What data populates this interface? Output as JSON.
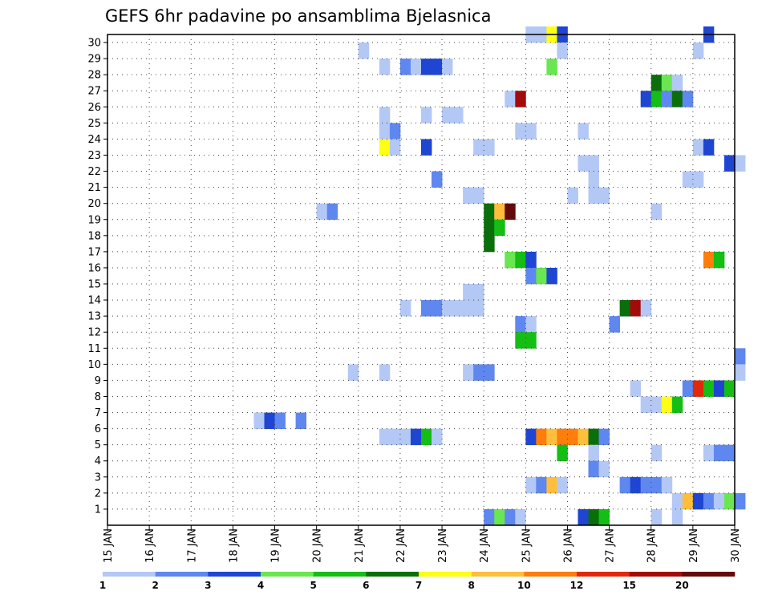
{
  "chart_data": {
    "type": "heatmap",
    "title": "GEFS 6hr padavine po ansamblima Bjelasnica",
    "xlabel": "",
    "ylabel": "",
    "x_tick_labels": [
      "15 JAN",
      "16 JAN",
      "17 JAN",
      "18 JAN",
      "19 JAN",
      "20 JAN",
      "21 JAN",
      "22 JAN",
      "23 JAN",
      "24 JAN",
      "25 JAN",
      "26 JAN",
      "27 JAN",
      "28 JAN",
      "29 JAN",
      "30 JAN"
    ],
    "x_steps_per_day": 4,
    "y_tick_labels": [
      "1",
      "2",
      "3",
      "4",
      "5",
      "6",
      "7",
      "8",
      "9",
      "10",
      "11",
      "12",
      "13",
      "14",
      "15",
      "16",
      "17",
      "18",
      "19",
      "20",
      "21",
      "22",
      "23",
      "24",
      "25",
      "26",
      "27",
      "28",
      "29",
      "30"
    ],
    "grid": true,
    "legend": {
      "placement": "bottom",
      "colors": [
        "#b4c8f5",
        "#5f87f0",
        "#1e46d2",
        "#69e650",
        "#14be14",
        "#0a6e0a",
        "#ffff14",
        "#ffbe3c",
        "#ff7d0a",
        "#e1280a",
        "#a50a0a",
        "#640a0a"
      ],
      "labels": [
        "1",
        "2",
        "3",
        "4",
        "5",
        "6",
        "7",
        "8",
        "10",
        "12",
        "15",
        "20"
      ]
    },
    "cells": [
      {
        "member": 30,
        "step": 40,
        "color": 0
      },
      {
        "member": 30,
        "step": 41,
        "color": 0
      },
      {
        "member": 30,
        "step": 42,
        "color": 6
      },
      {
        "member": 30,
        "step": 43,
        "color": 2
      },
      {
        "member": 30,
        "step": 57,
        "color": 2
      },
      {
        "member": 29,
        "step": 24,
        "color": 0
      },
      {
        "member": 29,
        "step": 43,
        "color": 0
      },
      {
        "member": 29,
        "step": 56,
        "color": 0
      },
      {
        "member": 28,
        "step": 26,
        "color": 0
      },
      {
        "member": 28,
        "step": 28,
        "color": 1
      },
      {
        "member": 28,
        "step": 29,
        "color": 0
      },
      {
        "member": 28,
        "step": 30,
        "color": 2
      },
      {
        "member": 28,
        "step": 31,
        "color": 2
      },
      {
        "member": 28,
        "step": 32,
        "color": 0
      },
      {
        "member": 28,
        "step": 42,
        "color": 3
      },
      {
        "member": 27,
        "step": 52,
        "color": 5
      },
      {
        "member": 27,
        "step": 53,
        "color": 3
      },
      {
        "member": 27,
        "step": 54,
        "color": 0
      },
      {
        "member": 26,
        "step": 38,
        "color": 0
      },
      {
        "member": 26,
        "step": 39,
        "color": 10
      },
      {
        "member": 26,
        "step": 51,
        "color": 2
      },
      {
        "member": 26,
        "step": 52,
        "color": 4
      },
      {
        "member": 26,
        "step": 53,
        "color": 1
      },
      {
        "member": 26,
        "step": 54,
        "color": 5
      },
      {
        "member": 26,
        "step": 55,
        "color": 1
      },
      {
        "member": 25,
        "step": 26,
        "color": 0
      },
      {
        "member": 25,
        "step": 30,
        "color": 0
      },
      {
        "member": 25,
        "step": 32,
        "color": 0
      },
      {
        "member": 25,
        "step": 33,
        "color": 0
      },
      {
        "member": 24,
        "step": 26,
        "color": 0
      },
      {
        "member": 24,
        "step": 27,
        "color": 1
      },
      {
        "member": 24,
        "step": 39,
        "color": 0
      },
      {
        "member": 24,
        "step": 40,
        "color": 0
      },
      {
        "member": 24,
        "step": 45,
        "color": 0
      },
      {
        "member": 23,
        "step": 26,
        "color": 6
      },
      {
        "member": 23,
        "step": 27,
        "color": 0
      },
      {
        "member": 23,
        "step": 30,
        "color": 2
      },
      {
        "member": 23,
        "step": 35,
        "color": 0
      },
      {
        "member": 23,
        "step": 36,
        "color": 0
      },
      {
        "member": 23,
        "step": 56,
        "color": 0
      },
      {
        "member": 23,
        "step": 57,
        "color": 2
      },
      {
        "member": 22,
        "step": 45,
        "color": 0
      },
      {
        "member": 22,
        "step": 46,
        "color": 0
      },
      {
        "member": 22,
        "step": 59,
        "color": 2
      },
      {
        "member": 22,
        "step": 60,
        "color": 0
      },
      {
        "member": 21,
        "step": 31,
        "color": 1
      },
      {
        "member": 21,
        "step": 46,
        "color": 0
      },
      {
        "member": 21,
        "step": 55,
        "color": 0
      },
      {
        "member": 21,
        "step": 56,
        "color": 0
      },
      {
        "member": 20,
        "step": 34,
        "color": 0
      },
      {
        "member": 20,
        "step": 35,
        "color": 0
      },
      {
        "member": 20,
        "step": 44,
        "color": 0
      },
      {
        "member": 20,
        "step": 46,
        "color": 0
      },
      {
        "member": 20,
        "step": 47,
        "color": 0
      },
      {
        "member": 19,
        "step": 20,
        "color": 0
      },
      {
        "member": 19,
        "step": 21,
        "color": 1
      },
      {
        "member": 19,
        "step": 36,
        "color": 5
      },
      {
        "member": 19,
        "step": 37,
        "color": 7
      },
      {
        "member": 19,
        "step": 38,
        "color": 11
      },
      {
        "member": 19,
        "step": 52,
        "color": 0
      },
      {
        "member": 18,
        "step": 36,
        "color": 5
      },
      {
        "member": 18,
        "step": 37,
        "color": 4
      },
      {
        "member": 17,
        "step": 36,
        "color": 5
      },
      {
        "member": 16,
        "step": 38,
        "color": 3
      },
      {
        "member": 16,
        "step": 39,
        "color": 4
      },
      {
        "member": 16,
        "step": 40,
        "color": 2
      },
      {
        "member": 16,
        "step": 57,
        "color": 8
      },
      {
        "member": 16,
        "step": 58,
        "color": 4
      },
      {
        "member": 15,
        "step": 40,
        "color": 1
      },
      {
        "member": 15,
        "step": 41,
        "color": 3
      },
      {
        "member": 15,
        "step": 42,
        "color": 2
      },
      {
        "member": 14,
        "step": 34,
        "color": 0
      },
      {
        "member": 14,
        "step": 35,
        "color": 0
      },
      {
        "member": 13,
        "step": 28,
        "color": 0
      },
      {
        "member": 13,
        "step": 30,
        "color": 1
      },
      {
        "member": 13,
        "step": 31,
        "color": 1
      },
      {
        "member": 13,
        "step": 32,
        "color": 0
      },
      {
        "member": 13,
        "step": 33,
        "color": 0
      },
      {
        "member": 13,
        "step": 34,
        "color": 0
      },
      {
        "member": 13,
        "step": 35,
        "color": 0
      },
      {
        "member": 13,
        "step": 49,
        "color": 5
      },
      {
        "member": 13,
        "step": 50,
        "color": 10
      },
      {
        "member": 13,
        "step": 51,
        "color": 0
      },
      {
        "member": 12,
        "step": 39,
        "color": 1
      },
      {
        "member": 12,
        "step": 40,
        "color": 0
      },
      {
        "member": 12,
        "step": 48,
        "color": 1
      },
      {
        "member": 11,
        "step": 39,
        "color": 4
      },
      {
        "member": 11,
        "step": 40,
        "color": 4
      },
      {
        "member": 10,
        "step": 60,
        "color": 1
      },
      {
        "member": 9,
        "step": 23,
        "color": 0
      },
      {
        "member": 9,
        "step": 26,
        "color": 0
      },
      {
        "member": 9,
        "step": 34,
        "color": 0
      },
      {
        "member": 9,
        "step": 35,
        "color": 1
      },
      {
        "member": 9,
        "step": 36,
        "color": 1
      },
      {
        "member": 9,
        "step": 60,
        "color": 0
      },
      {
        "member": 8,
        "step": 50,
        "color": 0
      },
      {
        "member": 8,
        "step": 55,
        "color": 1
      },
      {
        "member": 8,
        "step": 56,
        "color": 9
      },
      {
        "member": 8,
        "step": 57,
        "color": 4
      },
      {
        "member": 8,
        "step": 58,
        "color": 2
      },
      {
        "member": 8,
        "step": 59,
        "color": 4
      },
      {
        "member": 7,
        "step": 51,
        "color": 0
      },
      {
        "member": 7,
        "step": 52,
        "color": 0
      },
      {
        "member": 7,
        "step": 53,
        "color": 6
      },
      {
        "member": 7,
        "step": 54,
        "color": 4
      },
      {
        "member": 6,
        "step": 14,
        "color": 0
      },
      {
        "member": 6,
        "step": 15,
        "color": 2
      },
      {
        "member": 6,
        "step": 16,
        "color": 1
      },
      {
        "member": 6,
        "step": 18,
        "color": 1
      },
      {
        "member": 5,
        "step": 26,
        "color": 0
      },
      {
        "member": 5,
        "step": 27,
        "color": 0
      },
      {
        "member": 5,
        "step": 28,
        "color": 0
      },
      {
        "member": 5,
        "step": 29,
        "color": 2
      },
      {
        "member": 5,
        "step": 30,
        "color": 4
      },
      {
        "member": 5,
        "step": 31,
        "color": 0
      },
      {
        "member": 5,
        "step": 40,
        "color": 2
      },
      {
        "member": 5,
        "step": 41,
        "color": 8
      },
      {
        "member": 5,
        "step": 42,
        "color": 7
      },
      {
        "member": 5,
        "step": 43,
        "color": 8
      },
      {
        "member": 5,
        "step": 44,
        "color": 8
      },
      {
        "member": 5,
        "step": 45,
        "color": 7
      },
      {
        "member": 5,
        "step": 46,
        "color": 5
      },
      {
        "member": 5,
        "step": 47,
        "color": 1
      },
      {
        "member": 4,
        "step": 43,
        "color": 4
      },
      {
        "member": 4,
        "step": 46,
        "color": 0
      },
      {
        "member": 4,
        "step": 52,
        "color": 0
      },
      {
        "member": 4,
        "step": 57,
        "color": 0
      },
      {
        "member": 4,
        "step": 58,
        "color": 1
      },
      {
        "member": 4,
        "step": 59,
        "color": 1
      },
      {
        "member": 3,
        "step": 46,
        "color": 1
      },
      {
        "member": 3,
        "step": 47,
        "color": 0
      },
      {
        "member": 2,
        "step": 40,
        "color": 0
      },
      {
        "member": 2,
        "step": 41,
        "color": 1
      },
      {
        "member": 2,
        "step": 42,
        "color": 7
      },
      {
        "member": 2,
        "step": 43,
        "color": 0
      },
      {
        "member": 2,
        "step": 49,
        "color": 1
      },
      {
        "member": 2,
        "step": 50,
        "color": 2
      },
      {
        "member": 2,
        "step": 51,
        "color": 1
      },
      {
        "member": 2,
        "step": 52,
        "color": 1
      },
      {
        "member": 2,
        "step": 53,
        "color": 0
      },
      {
        "member": 1,
        "step": 54,
        "color": 0
      },
      {
        "member": 1,
        "step": 55,
        "color": 7
      },
      {
        "member": 1,
        "step": 56,
        "color": 2
      },
      {
        "member": 1,
        "step": 57,
        "color": 1
      },
      {
        "member": 1,
        "step": 58,
        "color": 0
      },
      {
        "member": 1,
        "step": 59,
        "color": 3
      },
      {
        "member": 1,
        "step": 60,
        "color": 1
      },
      {
        "member": 0,
        "step": 36,
        "color": 1
      },
      {
        "member": 0,
        "step": 37,
        "color": 3
      },
      {
        "member": 0,
        "step": 38,
        "color": 1
      },
      {
        "member": 0,
        "step": 39,
        "color": 0
      },
      {
        "member": 0,
        "step": 45,
        "color": 2
      },
      {
        "member": 0,
        "step": 46,
        "color": 5
      },
      {
        "member": 0,
        "step": 47,
        "color": 4
      },
      {
        "member": 0,
        "step": 52,
        "color": 0
      },
      {
        "member": 0,
        "step": 54,
        "color": 0
      }
    ]
  }
}
